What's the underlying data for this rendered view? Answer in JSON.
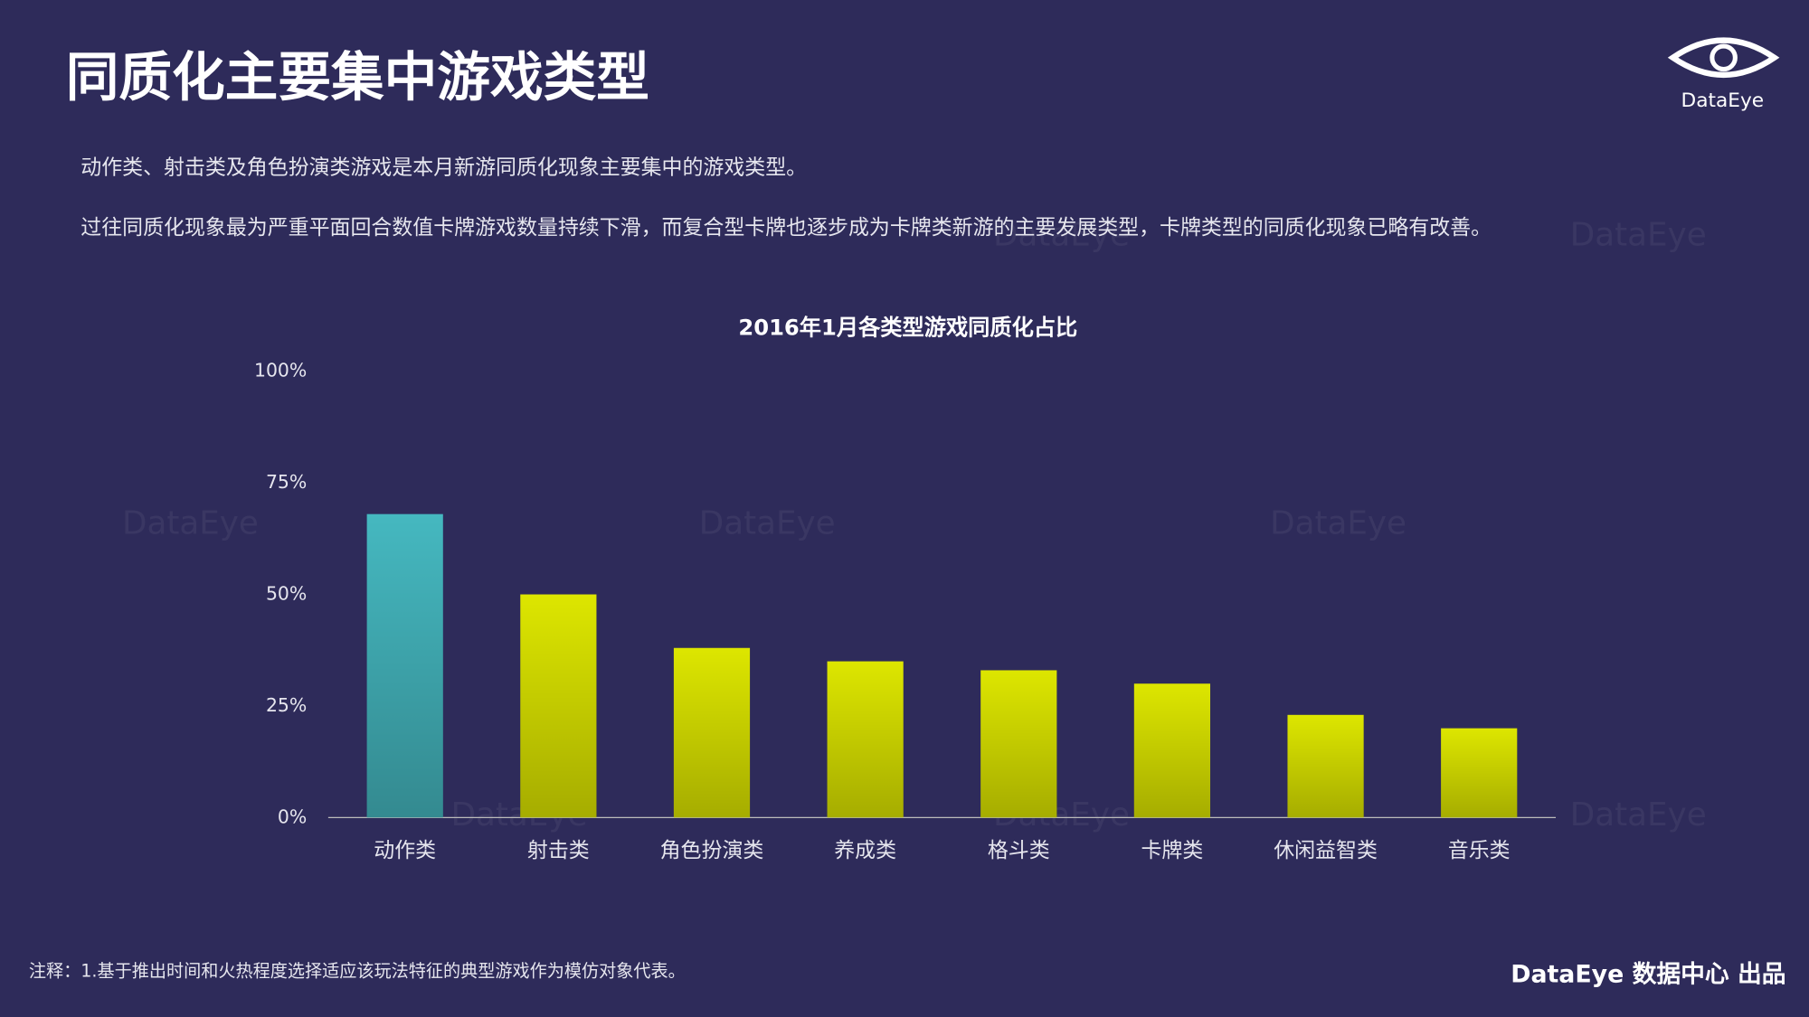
{
  "header": {
    "title": "同质化主要集中游戏类型",
    "logo": "DataEye"
  },
  "paragraphs": [
    "动作类、射击类及角色扮演类游戏是本月新游同质化现象主要集中的游戏类型。",
    "过往同质化现象最为严重平面回合数值卡牌游戏数量持续下滑，而复合型卡牌也逐步成为卡牌类新游的主要发展类型，卡牌类型的同质化现象已略有改善。"
  ],
  "chart_data": {
    "type": "bar",
    "title": "2016年1月各类型游戏同质化占比",
    "categories": [
      "动作类",
      "射击类",
      "角色扮演类",
      "养成类",
      "格斗类",
      "卡牌类",
      "休闲益智类",
      "音乐类"
    ],
    "values": [
      68,
      50,
      38,
      35,
      33,
      30,
      23,
      20
    ],
    "colors": [
      "#45b8c0",
      "#dde600",
      "#dde600",
      "#dde600",
      "#dde600",
      "#dde600",
      "#dde600",
      "#dde600"
    ],
    "ylim": [
      0,
      100
    ],
    "yticks": [
      {
        "value": 0,
        "label": "0%"
      },
      {
        "value": 25,
        "label": "25%"
      },
      {
        "value": 50,
        "label": "50%"
      },
      {
        "value": 75,
        "label": "75%"
      },
      {
        "value": 100,
        "label": "100%"
      }
    ],
    "grid": false
  },
  "watermark": "DataEye",
  "footer": {
    "note": "注释：1.基于推出时间和火热程度选择适应该玩法特征的典型游戏作为模仿对象代表。",
    "brand": "DataEye 数据中心 出品"
  }
}
